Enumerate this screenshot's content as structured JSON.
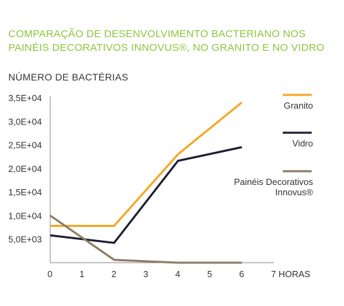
{
  "chart_data": {
    "type": "line",
    "title": "COMPARAÇÃO DE DESENVOLVIMENTO BACTERIANO NOS PAINÉIS DECORATIVOS INNOVUS®, NO GRANITO E NO VIDRO",
    "ylabel": "NÚMERO DE BACTÉRIAS",
    "xlabel": "HORAS",
    "x": [
      0,
      2,
      4,
      6
    ],
    "x_ticks": [
      "0",
      "1",
      "2",
      "3",
      "4",
      "5",
      "6",
      "7 HORAS"
    ],
    "x_tick_values": [
      0,
      1,
      2,
      3,
      4,
      5,
      6,
      7
    ],
    "xlim": [
      0,
      7
    ],
    "y_ticks": [
      "5,0E+03",
      "1,0E+04",
      "1,5E+04",
      "2,0E+04",
      "2,5E+04",
      "3,0E+04",
      "3,5E+04"
    ],
    "y_tick_values": [
      5000,
      10000,
      15000,
      20000,
      25000,
      30000,
      35000
    ],
    "ylim": [
      0,
      35000
    ],
    "grid": false,
    "legend_position": "right",
    "series": [
      {
        "name": "Granito",
        "color": "#f5a623",
        "values": [
          7800,
          7800,
          23000,
          34000
        ]
      },
      {
        "name": "Vidro",
        "color": "#1d1d33",
        "values": [
          5800,
          4200,
          21600,
          24500
        ]
      },
      {
        "name": "Painéis Decorativos Innovus®",
        "legend_lines": [
          "Painéis Decorativos",
          "Innovus®"
        ],
        "color": "#8b7d62",
        "values": [
          10000,
          600,
          0,
          0
        ]
      }
    ]
  }
}
